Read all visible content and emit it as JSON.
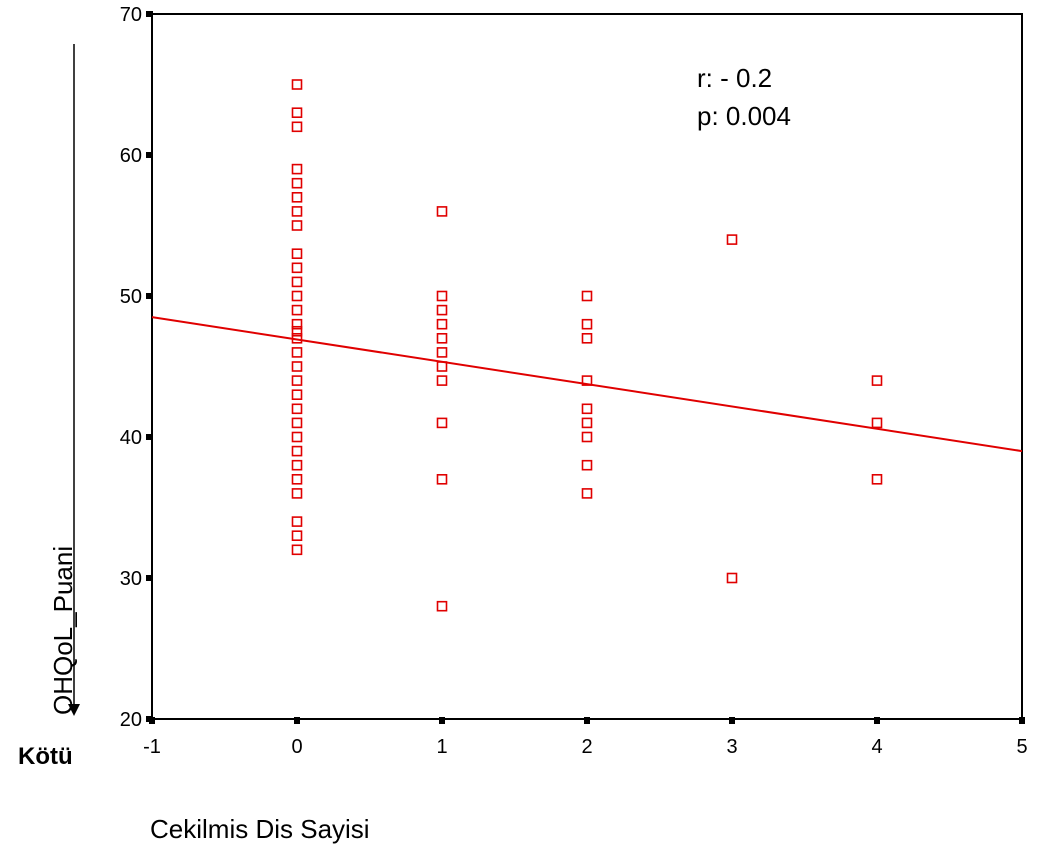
{
  "chart_data": {
    "type": "scatter",
    "xlabel": "Cekilmis Dis Sayisi",
    "ylabel": "OHQoL_Puani",
    "xlim": [
      -1,
      5
    ],
    "ylim": [
      20,
      70
    ],
    "x_ticks": [
      "-1",
      "0",
      "1",
      "2",
      "3",
      "4",
      "5"
    ],
    "y_ticks": [
      "20",
      "30",
      "40",
      "50",
      "60",
      "70"
    ],
    "annotations": [
      "r: - 0.2",
      "p: 0.004"
    ],
    "y_axis_bottom_label": "Kötü",
    "marker_color": "#e00000",
    "fit_line_color": "#e00000",
    "fit_line": {
      "x": [
        -1,
        5
      ],
      "y": [
        48.5,
        39.0
      ]
    },
    "points": [
      {
        "x": 0,
        "y": 65
      },
      {
        "x": 0,
        "y": 63
      },
      {
        "x": 0,
        "y": 62
      },
      {
        "x": 0,
        "y": 59
      },
      {
        "x": 0,
        "y": 58
      },
      {
        "x": 0,
        "y": 57
      },
      {
        "x": 0,
        "y": 56
      },
      {
        "x": 0,
        "y": 55
      },
      {
        "x": 0,
        "y": 53
      },
      {
        "x": 0,
        "y": 52
      },
      {
        "x": 0,
        "y": 51
      },
      {
        "x": 0,
        "y": 50
      },
      {
        "x": 0,
        "y": 49
      },
      {
        "x": 0,
        "y": 48
      },
      {
        "x": 0,
        "y": 47.5
      },
      {
        "x": 0,
        "y": 47
      },
      {
        "x": 0,
        "y": 46
      },
      {
        "x": 0,
        "y": 45
      },
      {
        "x": 0,
        "y": 44
      },
      {
        "x": 0,
        "y": 43
      },
      {
        "x": 0,
        "y": 42
      },
      {
        "x": 0,
        "y": 41
      },
      {
        "x": 0,
        "y": 40
      },
      {
        "x": 0,
        "y": 39
      },
      {
        "x": 0,
        "y": 38
      },
      {
        "x": 0,
        "y": 37
      },
      {
        "x": 0,
        "y": 36
      },
      {
        "x": 0,
        "y": 34
      },
      {
        "x": 0,
        "y": 33
      },
      {
        "x": 0,
        "y": 32
      },
      {
        "x": 1,
        "y": 56
      },
      {
        "x": 1,
        "y": 50
      },
      {
        "x": 1,
        "y": 49
      },
      {
        "x": 1,
        "y": 48
      },
      {
        "x": 1,
        "y": 47
      },
      {
        "x": 1,
        "y": 46
      },
      {
        "x": 1,
        "y": 45
      },
      {
        "x": 1,
        "y": 44
      },
      {
        "x": 1,
        "y": 41
      },
      {
        "x": 1,
        "y": 37
      },
      {
        "x": 1,
        "y": 28
      },
      {
        "x": 2,
        "y": 50
      },
      {
        "x": 2,
        "y": 48
      },
      {
        "x": 2,
        "y": 47
      },
      {
        "x": 2,
        "y": 44
      },
      {
        "x": 2,
        "y": 42
      },
      {
        "x": 2,
        "y": 41
      },
      {
        "x": 2,
        "y": 40
      },
      {
        "x": 2,
        "y": 38
      },
      {
        "x": 2,
        "y": 36
      },
      {
        "x": 3,
        "y": 54
      },
      {
        "x": 3,
        "y": 30
      },
      {
        "x": 4,
        "y": 44
      },
      {
        "x": 4,
        "y": 41
      },
      {
        "x": 4,
        "y": 37
      }
    ]
  }
}
